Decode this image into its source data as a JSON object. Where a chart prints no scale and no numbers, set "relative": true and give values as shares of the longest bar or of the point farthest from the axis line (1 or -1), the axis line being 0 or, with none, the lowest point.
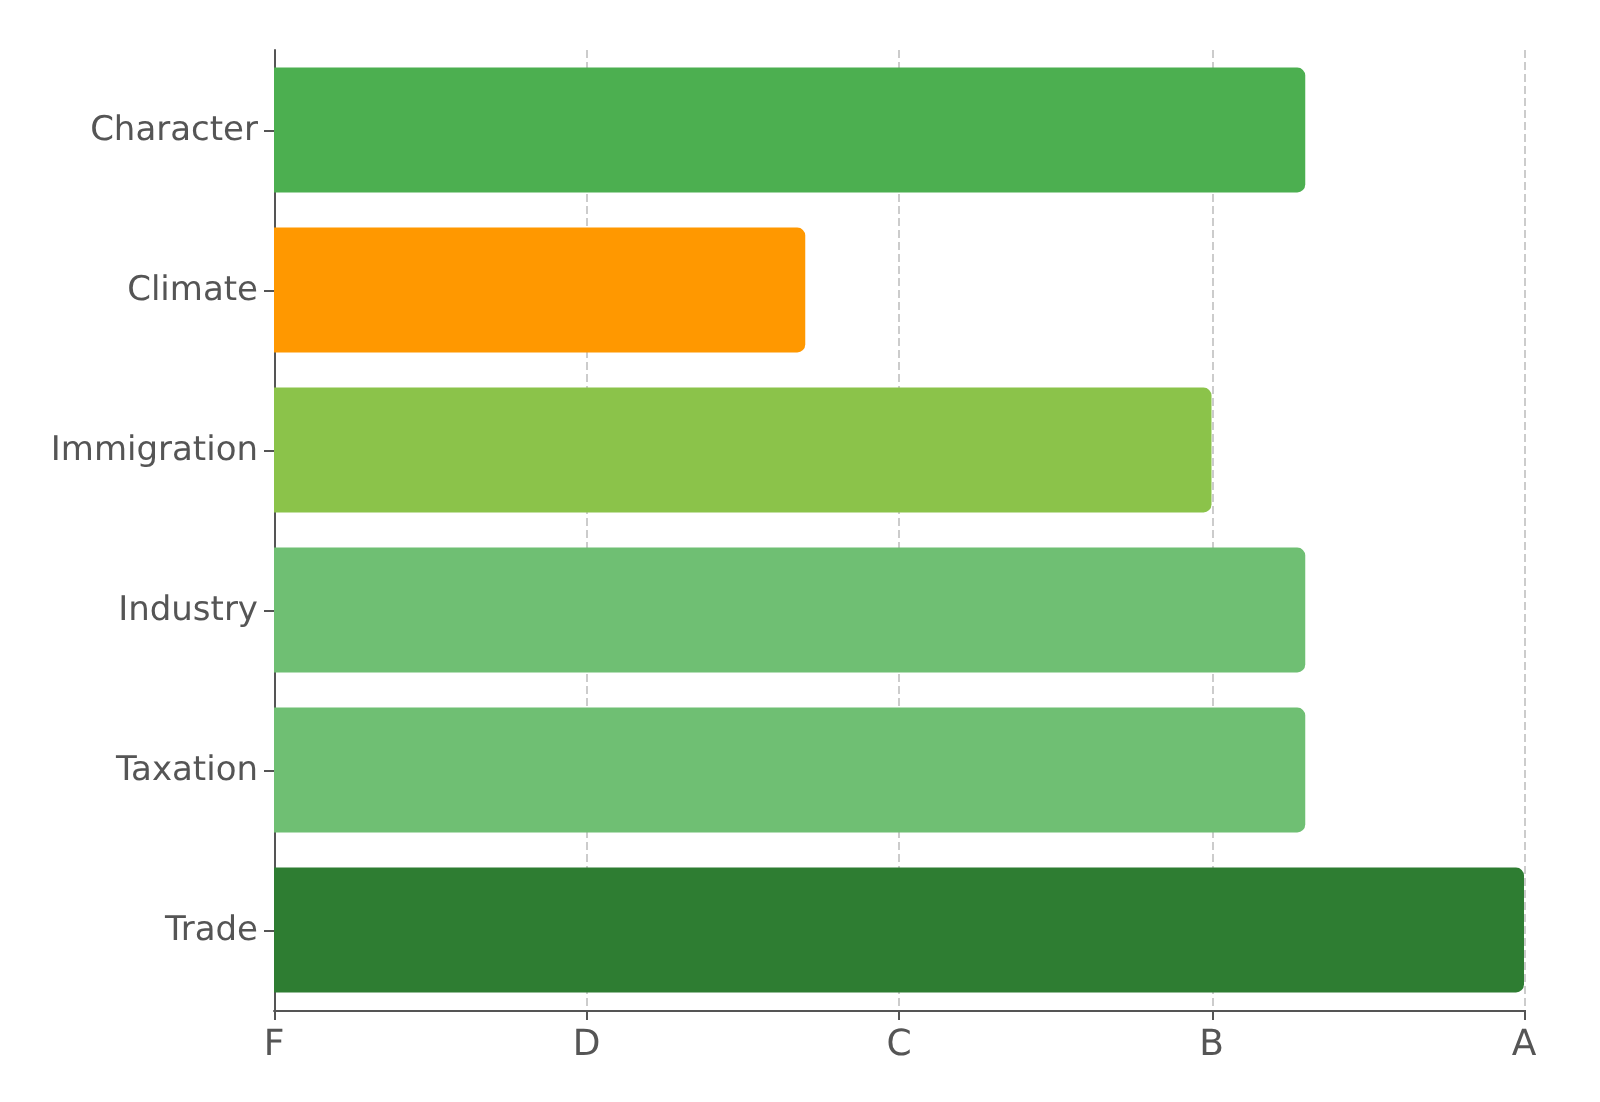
{
  "chart_data": {
    "type": "bar",
    "orientation": "horizontal",
    "relative": true,
    "categories": [
      "Character",
      "Climate",
      "Immigration",
      "Industry",
      "Taxation",
      "Trade"
    ],
    "values": [
      0.825,
      0.425,
      0.75,
      0.825,
      0.825,
      1
    ],
    "colors": [
      "#4caf50",
      "#ff9800",
      "#8bc34a",
      "#6fbf73",
      "#6fbf73",
      "#2e7d32"
    ],
    "annotations": [
      "F",
      "D",
      "C",
      "B",
      "A"
    ],
    "grid": "x"
  }
}
